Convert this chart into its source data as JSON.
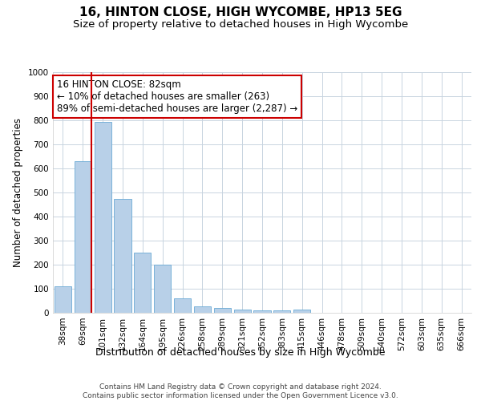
{
  "title": "16, HINTON CLOSE, HIGH WYCOMBE, HP13 5EG",
  "subtitle": "Size of property relative to detached houses in High Wycombe",
  "xlabel": "Distribution of detached houses by size in High Wycombe",
  "ylabel": "Number of detached properties",
  "categories": [
    "38sqm",
    "69sqm",
    "101sqm",
    "132sqm",
    "164sqm",
    "195sqm",
    "226sqm",
    "258sqm",
    "289sqm",
    "321sqm",
    "352sqm",
    "383sqm",
    "415sqm",
    "446sqm",
    "478sqm",
    "509sqm",
    "540sqm",
    "572sqm",
    "603sqm",
    "635sqm",
    "666sqm"
  ],
  "values": [
    110,
    630,
    795,
    475,
    250,
    200,
    60,
    28,
    20,
    12,
    10,
    10,
    12,
    0,
    0,
    0,
    0,
    0,
    0,
    0,
    0
  ],
  "bar_color": "#b8d0e8",
  "bar_edge_color": "#6aaad4",
  "vline_color": "#cc0000",
  "annotation_text": "16 HINTON CLOSE: 82sqm\n← 10% of detached houses are smaller (263)\n89% of semi-detached houses are larger (2,287) →",
  "annotation_box_color": "#ffffff",
  "annotation_box_edge_color": "#cc0000",
  "ylim": [
    0,
    1000
  ],
  "yticks": [
    0,
    100,
    200,
    300,
    400,
    500,
    600,
    700,
    800,
    900,
    1000
  ],
  "background_color": "#ffffff",
  "grid_color": "#c8d4e0",
  "footer_text": "Contains HM Land Registry data © Crown copyright and database right 2024.\nContains public sector information licensed under the Open Government Licence v3.0.",
  "title_fontsize": 11,
  "subtitle_fontsize": 9.5,
  "xlabel_fontsize": 9,
  "ylabel_fontsize": 8.5,
  "tick_fontsize": 7.5,
  "annotation_fontsize": 8.5,
  "footer_fontsize": 6.5
}
